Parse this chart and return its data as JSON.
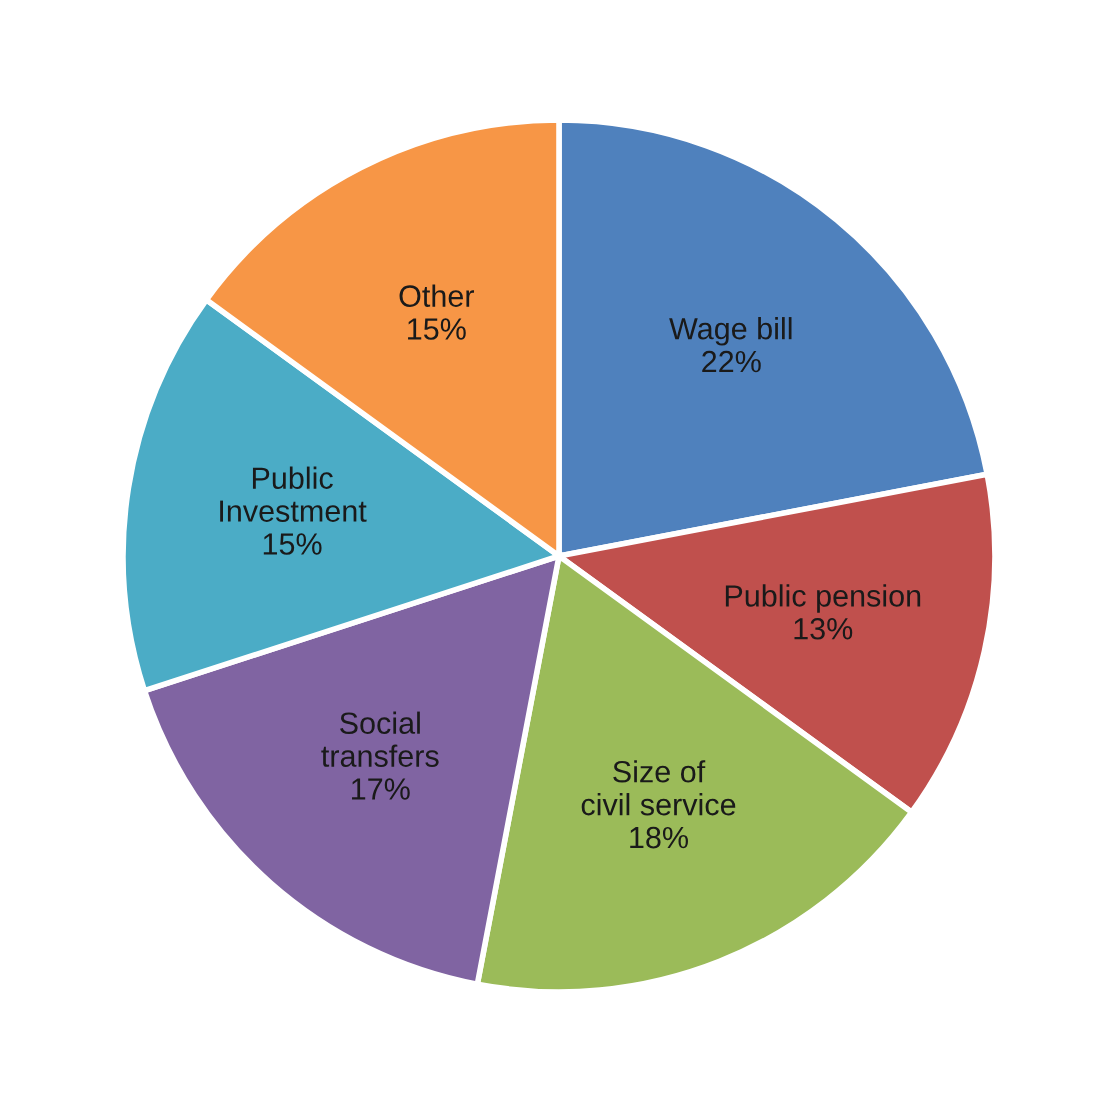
{
  "chart_data": {
    "type": "pie",
    "categories": [
      "Wage bill",
      "Public pension",
      "Size of civil service",
      "Social transfers",
      "Public Investment",
      "Other"
    ],
    "values": [
      22,
      13,
      18,
      17,
      15,
      15
    ],
    "value_labels": [
      "22%",
      "13%",
      "18%",
      "17%",
      "15%",
      "15%"
    ],
    "colors": [
      "#4f81bd",
      "#c0504d",
      "#9bbb59",
      "#8064a2",
      "#4bacc6",
      "#f79646"
    ],
    "legend": false
  }
}
